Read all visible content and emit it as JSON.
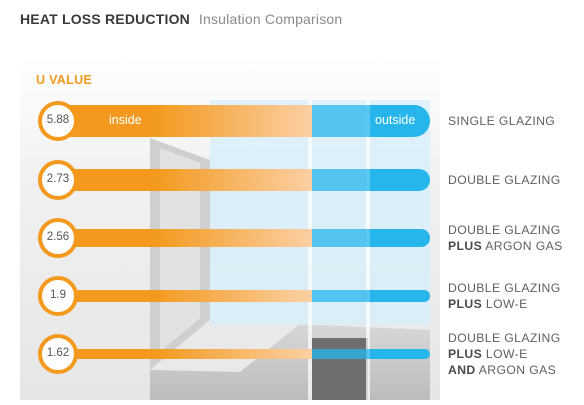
{
  "header": {
    "title": "HEAT LOSS REDUCTION",
    "subtitle": "Insulation Comparison"
  },
  "chart_data": {
    "type": "bar",
    "ylabel": "U VALUE",
    "inside_label": "inside",
    "outside_label": "outside",
    "categories": [
      {
        "lines": [
          {
            "bold": "",
            "text": "SINGLE GLAZING"
          }
        ]
      },
      {
        "lines": [
          {
            "bold": "",
            "text": "DOUBLE GLAZING"
          }
        ]
      },
      {
        "lines": [
          {
            "bold": "",
            "text": "DOUBLE GLAZING"
          },
          {
            "bold": "PLUS",
            "text": " ARGON GAS"
          }
        ]
      },
      {
        "lines": [
          {
            "bold": "",
            "text": "DOUBLE GLAZING"
          },
          {
            "bold": "PLUS",
            "text": " LOW-E"
          }
        ]
      },
      {
        "lines": [
          {
            "bold": "",
            "text": "DOUBLE GLAZING"
          },
          {
            "bold": "PLUS",
            "text": " LOW-E"
          },
          {
            "bold": "AND",
            "text": " ARGON GAS"
          }
        ]
      }
    ],
    "values": [
      "5.88",
      "2.73",
      "2.56",
      "1.9",
      "1.62"
    ],
    "colors": {
      "inside": "#f39a1e",
      "inside_fade": "#fbd0a4",
      "outside": "#26b6ec",
      "glass": "#cdeaf8"
    }
  }
}
